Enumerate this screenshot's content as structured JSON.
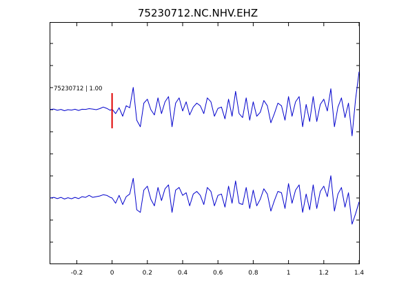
{
  "chart_data": {
    "type": "line",
    "title": "75230712.NC.NHV.EHZ",
    "xlabel": "",
    "ylabel": "",
    "xlim": [
      -0.35,
      1.4
    ],
    "xticks": [
      -0.2,
      0,
      0.2,
      0.4,
      0.6,
      0.8,
      1,
      1.2,
      1.4
    ],
    "xtick_labels": [
      "-0.2",
      "0",
      "0.2",
      "0.4",
      "0.6",
      "0.8",
      "1",
      "1.2",
      "1.4"
    ],
    "grid": false,
    "legend": "none",
    "colors": {
      "trace": "#0000cc",
      "pick": "#e00000",
      "axes": "#000000"
    },
    "annotations": [
      {
        "text": "75230712 | 1.00",
        "target": "upper trace"
      }
    ],
    "pick_marker": {
      "x": 0.0,
      "color": "#e00000"
    },
    "series": [
      {
        "trace": "upper",
        "x": [
          -0.35,
          -0.33,
          -0.31,
          -0.29,
          -0.27,
          -0.25,
          -0.23,
          -0.21,
          -0.19,
          -0.17,
          -0.15,
          -0.13,
          -0.11,
          -0.09,
          -0.07,
          -0.05,
          -0.03,
          -0.01,
          0.0,
          0.02,
          0.04,
          0.06,
          0.08,
          0.1,
          0.12,
          0.14,
          0.16,
          0.18,
          0.2,
          0.22,
          0.24,
          0.26,
          0.28,
          0.3,
          0.32,
          0.34,
          0.36,
          0.38,
          0.4,
          0.42,
          0.44,
          0.46,
          0.48,
          0.5,
          0.52,
          0.54,
          0.56,
          0.58,
          0.6,
          0.62,
          0.64,
          0.66,
          0.68,
          0.7,
          0.72,
          0.74,
          0.76,
          0.78,
          0.8,
          0.82,
          0.84,
          0.86,
          0.88,
          0.9,
          0.92,
          0.94,
          0.96,
          0.98,
          1.0,
          1.02,
          1.04,
          1.06,
          1.08,
          1.1,
          1.12,
          1.14,
          1.16,
          1.18,
          1.2,
          1.22,
          1.24,
          1.26,
          1.28,
          1.3,
          1.32,
          1.34,
          1.36,
          1.38,
          1.4
        ],
        "y": [
          0.02,
          0.05,
          -0.05,
          0.02,
          -0.08,
          0.0,
          -0.03,
          0.03,
          -0.06,
          0.03,
          0.02,
          0.08,
          0.05,
          0.0,
          0.08,
          0.2,
          0.1,
          -0.05,
          0.05,
          -0.3,
          0.15,
          -0.5,
          0.3,
          0.15,
          1.7,
          -0.8,
          -1.3,
          0.5,
          0.8,
          0.0,
          -0.4,
          0.9,
          -0.3,
          0.6,
          1.0,
          -1.3,
          0.5,
          0.9,
          -0.1,
          0.6,
          -0.4,
          0.2,
          0.5,
          0.3,
          -0.3,
          0.9,
          0.6,
          -0.5,
          0.1,
          0.2,
          -0.7,
          0.8,
          -0.5,
          1.4,
          -0.3,
          -0.6,
          0.9,
          -0.8,
          0.6,
          -0.5,
          -0.2,
          0.7,
          0.3,
          -1.0,
          -0.3,
          0.5,
          0.3,
          -0.8,
          1.0,
          -0.5,
          0.6,
          1.0,
          -1.3,
          0.4,
          -0.9,
          1.0,
          -0.9,
          0.4,
          0.8,
          -0.1,
          1.6,
          -1.3,
          0.2,
          0.9,
          -0.6,
          0.5,
          -2.0,
          0.8,
          2.9
        ]
      },
      {
        "trace": "lower",
        "x": [
          -0.35,
          -0.33,
          -0.31,
          -0.29,
          -0.27,
          -0.25,
          -0.23,
          -0.21,
          -0.19,
          -0.17,
          -0.15,
          -0.13,
          -0.11,
          -0.09,
          -0.07,
          -0.05,
          -0.03,
          -0.01,
          0.0,
          0.02,
          0.04,
          0.06,
          0.08,
          0.1,
          0.12,
          0.14,
          0.16,
          0.18,
          0.2,
          0.22,
          0.24,
          0.26,
          0.28,
          0.3,
          0.32,
          0.34,
          0.36,
          0.38,
          0.4,
          0.42,
          0.44,
          0.46,
          0.48,
          0.5,
          0.52,
          0.54,
          0.56,
          0.58,
          0.6,
          0.62,
          0.64,
          0.66,
          0.68,
          0.7,
          0.72,
          0.74,
          0.76,
          0.78,
          0.8,
          0.82,
          0.84,
          0.86,
          0.88,
          0.9,
          0.92,
          0.94,
          0.96,
          0.98,
          1.0,
          1.02,
          1.04,
          1.06,
          1.08,
          1.1,
          1.12,
          1.14,
          1.16,
          1.18,
          1.2,
          1.22,
          1.24,
          1.26,
          1.28,
          1.3,
          1.32,
          1.34,
          1.36,
          1.38,
          1.4
        ],
        "y": [
          0.0,
          0.05,
          -0.05,
          0.05,
          -0.08,
          0.02,
          -0.06,
          0.05,
          -0.05,
          0.1,
          0.05,
          0.2,
          0.05,
          0.1,
          0.15,
          0.25,
          0.2,
          0.05,
          0.0,
          -0.4,
          0.2,
          -0.5,
          0.1,
          0.3,
          1.5,
          -0.9,
          -1.1,
          0.6,
          0.9,
          -0.1,
          -0.6,
          0.8,
          -0.2,
          0.7,
          1.0,
          -1.1,
          0.6,
          0.8,
          0.2,
          0.4,
          -0.6,
          0.3,
          0.5,
          0.2,
          -0.5,
          0.8,
          0.5,
          -0.6,
          0.2,
          0.3,
          -0.7,
          0.9,
          -0.4,
          1.3,
          -0.4,
          -0.5,
          0.8,
          -0.8,
          0.6,
          -0.6,
          -0.1,
          0.7,
          0.3,
          -1.0,
          -0.2,
          0.5,
          0.4,
          -0.8,
          1.1,
          -0.4,
          0.6,
          1.0,
          -1.1,
          0.3,
          -0.9,
          1.0,
          -0.8,
          0.5,
          0.9,
          0.1,
          1.7,
          -1.0,
          0.3,
          0.8,
          -0.7,
          0.4,
          -2.0,
          -1.2,
          -0.3
        ]
      }
    ]
  }
}
